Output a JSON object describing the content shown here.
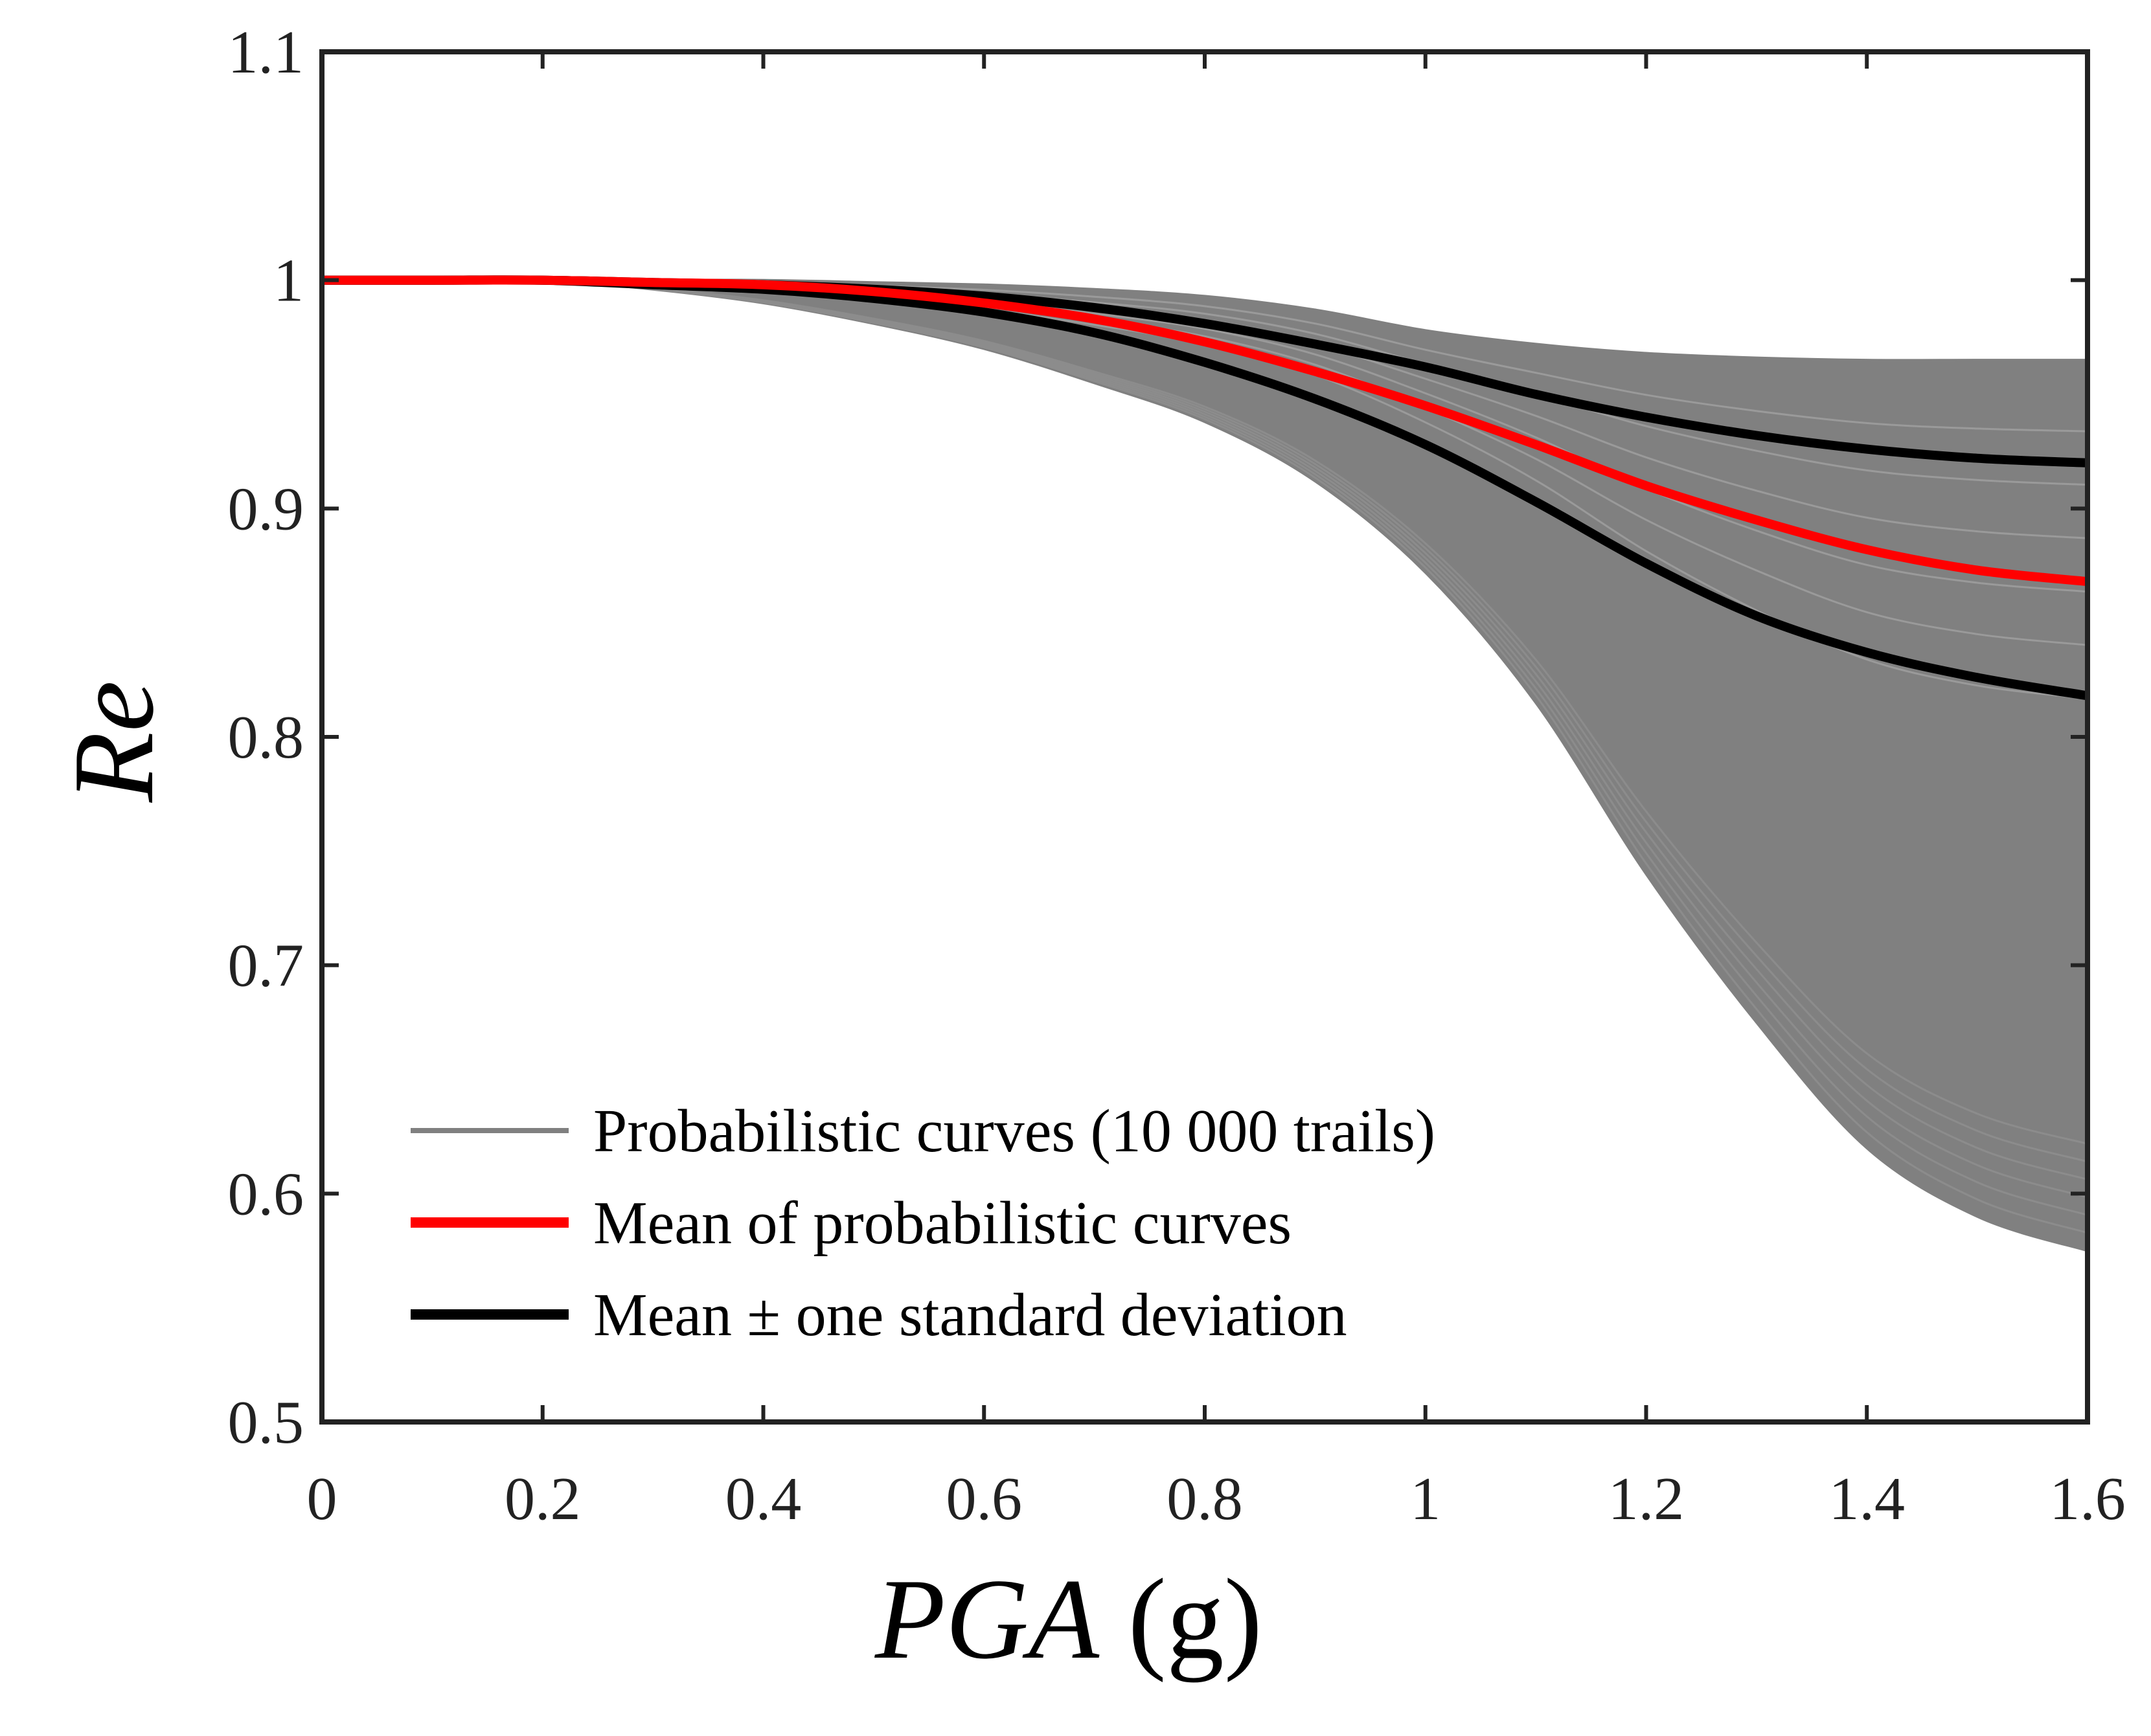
{
  "chart_data": {
    "type": "line",
    "xlabel": "PGA (g)",
    "xlabel_parts": {
      "var": "PGA",
      "unit": " (g)"
    },
    "ylabel": "Re",
    "xlim": [
      0,
      1.6
    ],
    "ylim": [
      0.5,
      1.1
    ],
    "xticks": [
      0,
      0.2,
      0.4,
      0.6,
      0.8,
      1,
      1.2,
      1.4,
      1.6
    ],
    "xtick_labels": [
      "0",
      "0.2",
      "0.4",
      "0.6",
      "0.8",
      "1",
      "1.2",
      "1.4",
      "1.6"
    ],
    "yticks": [
      0.5,
      0.6,
      0.7,
      0.8,
      0.9,
      1,
      1.1
    ],
    "ytick_labels": [
      "0.5",
      "0.6",
      "0.7",
      "0.8",
      "0.9",
      "1",
      "1.1"
    ],
    "grid": false,
    "legend_position": "bottom-left",
    "x": [
      0,
      0.1,
      0.2,
      0.3,
      0.4,
      0.5,
      0.6,
      0.7,
      0.8,
      0.9,
      1.0,
      1.1,
      1.2,
      1.3,
      1.4,
      1.5,
      1.6
    ],
    "series": [
      {
        "name": "Probabilistic curves (10 000 trails)",
        "color": "#808080",
        "style": "band",
        "upper": [
          1,
          1,
          1,
          1,
          1,
          0.999,
          0.998,
          0.996,
          0.993,
          0.987,
          0.978,
          0.972,
          0.968,
          0.966,
          0.965,
          0.965,
          0.965
        ],
        "lower": [
          1,
          1,
          1,
          0.996,
          0.99,
          0.981,
          0.97,
          0.955,
          0.938,
          0.912,
          0.872,
          0.815,
          0.74,
          0.675,
          0.62,
          0.59,
          0.575
        ]
      },
      {
        "name": "Mean of probabilistic curves",
        "color": "#ff0000",
        "values": [
          1,
          1,
          1,
          0.999,
          0.998,
          0.995,
          0.99,
          0.983,
          0.973,
          0.96,
          0.945,
          0.928,
          0.91,
          0.895,
          0.882,
          0.873,
          0.868
        ]
      },
      {
        "name": "Mean ± one standard deviation",
        "color": "#000000",
        "values": [
          1,
          1,
          1,
          0.999,
          0.998,
          0.996,
          0.993,
          0.988,
          0.981,
          0.972,
          0.962,
          0.95,
          0.94,
          0.932,
          0.926,
          0.922,
          0.92
        ]
      },
      {
        "name": "",
        "color": "#000000",
        "values": [
          1,
          1,
          1,
          0.998,
          0.996,
          0.992,
          0.986,
          0.977,
          0.964,
          0.948,
          0.928,
          0.903,
          0.876,
          0.853,
          0.837,
          0.826,
          0.818
        ]
      }
    ]
  }
}
